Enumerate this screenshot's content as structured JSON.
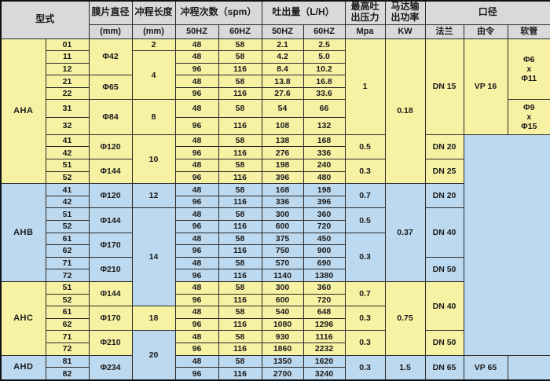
{
  "colors": {
    "group_yellow": "#f7f1a4",
    "group_blue": "#bdd9ef",
    "header_gray": "#d9d9d9",
    "border": "#2a2a2a"
  },
  "column_names": [
    "model-series",
    "model-code",
    "diaphragm-diameter",
    "stroke-length",
    "stroke-rate-50hz",
    "stroke-rate-60hz",
    "discharge-50hz",
    "discharge-60hz",
    "max-pressure",
    "motor-power",
    "flange-bore",
    "union-bore",
    "hose-bore"
  ],
  "header": {
    "row1": [
      {
        "label": "型式",
        "rs": 2,
        "cs": 2,
        "name": "col-header-model"
      },
      {
        "label": "膜片直径",
        "name": "col-header-diaphragm-diameter"
      },
      {
        "label": "冲程长度",
        "name": "col-header-stroke-length"
      },
      {
        "label": "冲程次数（spm）",
        "cs": 2,
        "name": "col-header-stroke-rate"
      },
      {
        "label": "吐出量（L/H）",
        "cs": 2,
        "name": "col-header-discharge"
      },
      {
        "label": "最高吐\n出压力",
        "name": "col-header-max-pressure"
      },
      {
        "label": "马达输\n出功率",
        "name": "col-header-motor-power"
      },
      {
        "label": "口径",
        "cs": 3,
        "name": "col-header-bore"
      }
    ],
    "row2": [
      {
        "label": "(mm)",
        "name": "col-header-diaphragm-unit"
      },
      {
        "label": "(mm)",
        "name": "col-header-stroke-unit"
      },
      {
        "label": "50HZ",
        "name": "col-header-spm-50hz"
      },
      {
        "label": "60HZ",
        "name": "col-header-spm-60hz"
      },
      {
        "label": "50HZ",
        "name": "col-header-lh-50hz"
      },
      {
        "label": "60HZ",
        "name": "col-header-lh-60hz"
      },
      {
        "label": "Mpa",
        "name": "col-header-mpa"
      },
      {
        "label": "KW",
        "name": "col-header-kw"
      },
      {
        "label": "法兰",
        "name": "col-header-flange"
      },
      {
        "label": "由令",
        "name": "col-header-union"
      },
      {
        "label": "软管",
        "name": "col-header-hose"
      }
    ]
  },
  "body": [
    {
      "g": "a",
      "cells": [
        {
          "v": "AHA",
          "rs": 11,
          "n": "model-series-aha"
        },
        {
          "v": "01"
        },
        {
          "v": "Φ42",
          "rs": 3
        },
        {
          "v": "2"
        },
        {
          "v": "48"
        },
        {
          "v": "58"
        },
        {
          "v": "2.1"
        },
        {
          "v": "2.5"
        },
        {
          "v": "1",
          "rs": 7
        },
        {
          "v": "0.18",
          "rs": 11
        },
        {
          "v": "DN 15",
          "rs": 7
        },
        {
          "v": "VP 16",
          "rs": 7
        },
        {
          "v": "Φ6\nx\nΦ11",
          "rs": 5
        }
      ]
    },
    {
      "g": "a",
      "cells": [
        {
          "v": "11"
        },
        {
          "v": "4",
          "rs": 4
        },
        {
          "v": "48"
        },
        {
          "v": "58"
        },
        {
          "v": "4.2"
        },
        {
          "v": "5.0"
        }
      ]
    },
    {
      "g": "a",
      "cells": [
        {
          "v": "12"
        },
        {
          "v": "96"
        },
        {
          "v": "116"
        },
        {
          "v": "8.4"
        },
        {
          "v": "10.2"
        }
      ]
    },
    {
      "g": "a",
      "cells": [
        {
          "v": "21"
        },
        {
          "v": "Φ65",
          "rs": 2
        },
        {
          "v": "48"
        },
        {
          "v": "58"
        },
        {
          "v": "13.8"
        },
        {
          "v": "16.8"
        }
      ]
    },
    {
      "g": "a",
      "cells": [
        {
          "v": "22"
        },
        {
          "v": "96"
        },
        {
          "v": "116"
        },
        {
          "v": "27.6"
        },
        {
          "v": "33.6"
        }
      ]
    },
    {
      "g": "a",
      "cells": [
        {
          "v": "31"
        },
        {
          "v": "Φ84",
          "rs": 2
        },
        {
          "v": "8",
          "rs": 2
        },
        {
          "v": "48"
        },
        {
          "v": "58"
        },
        {
          "v": "54"
        },
        {
          "v": "66"
        },
        {
          "v": "Φ9\nx\nΦ15",
          "rs": 2
        }
      ]
    },
    {
      "g": "a",
      "cells": [
        {
          "v": "32"
        },
        {
          "v": "96"
        },
        {
          "v": "116"
        },
        {
          "v": "108"
        },
        {
          "v": "132"
        }
      ]
    },
    {
      "g": "a",
      "cells": [
        {
          "v": "41"
        },
        {
          "v": "Φ120",
          "rs": 2
        },
        {
          "v": "10",
          "rs": 4
        },
        {
          "v": "48"
        },
        {
          "v": "58"
        },
        {
          "v": "138"
        },
        {
          "v": "168"
        },
        {
          "v": "0.5",
          "rs": 2
        },
        {
          "v": "DN 20",
          "rs": 2
        },
        {
          "v": "",
          "rs": 18,
          "cs": 2,
          "bg": "b",
          "n": "union-hose-merged-empty"
        }
      ]
    },
    {
      "g": "a",
      "cells": [
        {
          "v": "42"
        },
        {
          "v": "96"
        },
        {
          "v": "116"
        },
        {
          "v": "276"
        },
        {
          "v": "336"
        }
      ]
    },
    {
      "g": "a",
      "cells": [
        {
          "v": "51"
        },
        {
          "v": "Φ144",
          "rs": 2
        },
        {
          "v": "48"
        },
        {
          "v": "58"
        },
        {
          "v": "198"
        },
        {
          "v": "240"
        },
        {
          "v": "0.3",
          "rs": 2
        },
        {
          "v": "DN 25",
          "rs": 2
        }
      ]
    },
    {
      "g": "a",
      "cells": [
        {
          "v": "52"
        },
        {
          "v": "96"
        },
        {
          "v": "116"
        },
        {
          "v": "396"
        },
        {
          "v": "480"
        }
      ]
    },
    {
      "g": "b",
      "cells": [
        {
          "v": "AHB",
          "rs": 8,
          "n": "model-series-ahb"
        },
        {
          "v": "41"
        },
        {
          "v": "Φ120",
          "rs": 2
        },
        {
          "v": "12",
          "rs": 2
        },
        {
          "v": "48"
        },
        {
          "v": "58"
        },
        {
          "v": "168"
        },
        {
          "v": "198"
        },
        {
          "v": "0.7",
          "rs": 2
        },
        {
          "v": "0.37",
          "rs": 8
        },
        {
          "v": "DN 20",
          "rs": 2
        }
      ]
    },
    {
      "g": "b",
      "cells": [
        {
          "v": "42"
        },
        {
          "v": "96"
        },
        {
          "v": "116"
        },
        {
          "v": "336"
        },
        {
          "v": "396"
        }
      ]
    },
    {
      "g": "b",
      "cells": [
        {
          "v": "51"
        },
        {
          "v": "Φ144",
          "rs": 2
        },
        {
          "v": "14",
          "rs": 8,
          "bg": "b"
        },
        {
          "v": "48"
        },
        {
          "v": "58"
        },
        {
          "v": "300"
        },
        {
          "v": "360"
        },
        {
          "v": "0.5",
          "rs": 2
        },
        {
          "v": "DN 40",
          "rs": 4
        }
      ]
    },
    {
      "g": "b",
      "cells": [
        {
          "v": "52"
        },
        {
          "v": "96"
        },
        {
          "v": "116"
        },
        {
          "v": "600"
        },
        {
          "v": "720"
        }
      ]
    },
    {
      "g": "b",
      "cells": [
        {
          "v": "61"
        },
        {
          "v": "Φ170",
          "rs": 2
        },
        {
          "v": "48"
        },
        {
          "v": "58"
        },
        {
          "v": "375"
        },
        {
          "v": "450"
        },
        {
          "v": "0.3",
          "rs": 4
        }
      ]
    },
    {
      "g": "b",
      "cells": [
        {
          "v": "62"
        },
        {
          "v": "96"
        },
        {
          "v": "116"
        },
        {
          "v": "750"
        },
        {
          "v": "900"
        }
      ]
    },
    {
      "g": "b",
      "cells": [
        {
          "v": "71"
        },
        {
          "v": "Φ210",
          "rs": 2
        },
        {
          "v": "48"
        },
        {
          "v": "58"
        },
        {
          "v": "570"
        },
        {
          "v": "690"
        },
        {
          "v": "DN 50",
          "rs": 2
        }
      ]
    },
    {
      "g": "b",
      "cells": [
        {
          "v": "72"
        },
        {
          "v": "96"
        },
        {
          "v": "116"
        },
        {
          "v": "1140"
        },
        {
          "v": "1380"
        }
      ]
    },
    {
      "g": "a",
      "cells": [
        {
          "v": "AHC",
          "rs": 6,
          "n": "model-series-ahc"
        },
        {
          "v": "51"
        },
        {
          "v": "Φ144",
          "rs": 2
        },
        {
          "v": "48"
        },
        {
          "v": "58"
        },
        {
          "v": "300"
        },
        {
          "v": "360"
        },
        {
          "v": "0.7",
          "rs": 2
        },
        {
          "v": "0.75",
          "rs": 6
        },
        {
          "v": "DN 40",
          "rs": 4
        }
      ]
    },
    {
      "g": "a",
      "cells": [
        {
          "v": "52"
        },
        {
          "v": "96"
        },
        {
          "v": "116"
        },
        {
          "v": "600"
        },
        {
          "v": "720"
        }
      ]
    },
    {
      "g": "a",
      "cells": [
        {
          "v": "61"
        },
        {
          "v": "Φ170",
          "rs": 2
        },
        {
          "v": "18",
          "rs": 2
        },
        {
          "v": "48"
        },
        {
          "v": "58"
        },
        {
          "v": "540"
        },
        {
          "v": "648"
        },
        {
          "v": "0.3",
          "rs": 2
        }
      ]
    },
    {
      "g": "a",
      "cells": [
        {
          "v": "62"
        },
        {
          "v": "96"
        },
        {
          "v": "116"
        },
        {
          "v": "1080"
        },
        {
          "v": "1296"
        }
      ]
    },
    {
      "g": "a",
      "cells": [
        {
          "v": "71"
        },
        {
          "v": "Φ210",
          "rs": 2
        },
        {
          "v": "20",
          "rs": 4,
          "bg": "b"
        },
        {
          "v": "48"
        },
        {
          "v": "58"
        },
        {
          "v": "930"
        },
        {
          "v": "1116"
        },
        {
          "v": "0.3",
          "rs": 2
        },
        {
          "v": "DN 50",
          "rs": 2
        }
      ]
    },
    {
      "g": "a",
      "cells": [
        {
          "v": "72"
        },
        {
          "v": "96"
        },
        {
          "v": "116"
        },
        {
          "v": "1860"
        },
        {
          "v": "2232"
        }
      ]
    },
    {
      "g": "b",
      "cells": [
        {
          "v": "AHD",
          "rs": 2,
          "n": "model-series-ahd"
        },
        {
          "v": "81"
        },
        {
          "v": "Φ234",
          "rs": 2
        },
        {
          "v": "48"
        },
        {
          "v": "58"
        },
        {
          "v": "1350"
        },
        {
          "v": "1620"
        },
        {
          "v": "0.3",
          "rs": 2
        },
        {
          "v": "1.5",
          "rs": 2
        },
        {
          "v": "DN 65",
          "rs": 2
        },
        {
          "v": "VP 65",
          "rs": 2
        },
        {
          "v": "",
          "rs": 2,
          "n": "hose-bore-empty"
        }
      ]
    },
    {
      "g": "b",
      "cells": [
        {
          "v": "82"
        },
        {
          "v": "96"
        },
        {
          "v": "116"
        },
        {
          "v": "2700"
        },
        {
          "v": "3240"
        }
      ]
    }
  ]
}
